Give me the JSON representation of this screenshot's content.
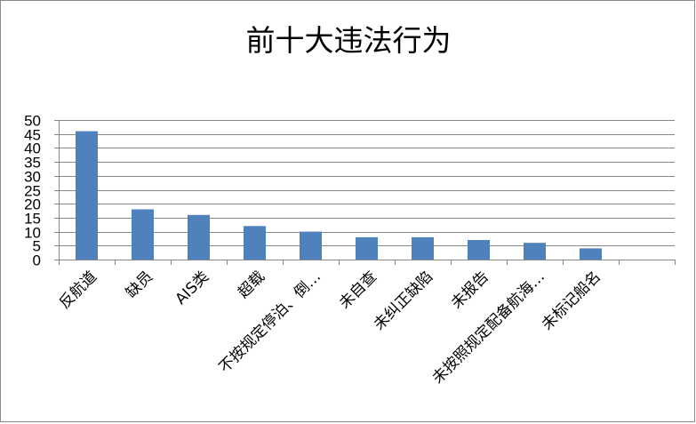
{
  "chart_data": {
    "type": "bar",
    "title": "前十大违法行为",
    "categories": [
      "反航道",
      "缺员",
      "AIS类",
      "超载",
      "不按规定停泊、倒…",
      "未自查",
      "未纠正缺陷",
      "未报告",
      "未按照规定配备航海…",
      "未标记船名",
      ""
    ],
    "values": [
      46,
      18,
      16,
      12,
      10,
      8,
      8,
      7,
      6,
      4,
      null
    ],
    "ylim": [
      0,
      50
    ],
    "yticks": [
      0,
      5,
      10,
      15,
      20,
      25,
      30,
      35,
      40,
      45,
      50
    ],
    "xlabel": "",
    "ylabel": "",
    "grid": true,
    "legend": "none",
    "bar_color": "#4f81bd",
    "grid_color": "#878787"
  }
}
